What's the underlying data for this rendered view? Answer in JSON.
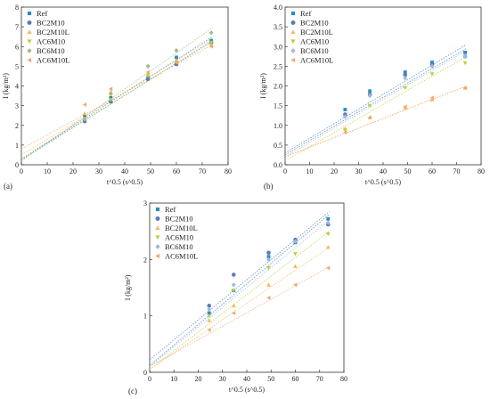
{
  "chart_data": [
    {
      "type": "scatter",
      "panel_label": "(a)",
      "xlabel": "t^0.5 (s^0.5)",
      "ylabel": "I (kg/m²)",
      "xlim": [
        0,
        80
      ],
      "ylim": [
        0,
        8
      ],
      "xticks": [
        "0",
        "10",
        "20",
        "30",
        "40",
        "50",
        "60",
        "70",
        "80"
      ],
      "yticks": [
        "0",
        "1",
        "2",
        "3",
        "4",
        "5",
        "6",
        "7",
        "8"
      ],
      "legend": "top-left",
      "x": [
        24.5,
        34.6,
        49.0,
        60.0,
        73.5
      ],
      "series": [
        {
          "name": "Ref",
          "marker": "square",
          "color": "#2b8cbe",
          "values": [
            2.45,
            3.4,
            4.4,
            5.45,
            6.3
          ],
          "fit": [
            0.3,
            6.5
          ]
        },
        {
          "name": "BC2M10",
          "marker": "circle",
          "color": "#5b7bb8",
          "values": [
            2.2,
            3.2,
            4.35,
            5.1,
            6.2
          ],
          "fit": [
            0.25,
            6.3
          ]
        },
        {
          "name": "BC2M10L",
          "marker": "triangle-up",
          "color": "#f5b95b",
          "values": [
            2.6,
            3.7,
            4.6,
            5.3,
            6.1
          ],
          "fit": [
            0.5,
            6.4
          ]
        },
        {
          "name": "AC6M10",
          "marker": "triangle-down",
          "color": "#b5d334",
          "values": [
            2.35,
            3.3,
            4.5,
            5.2,
            6.2
          ],
          "fit": [
            0.3,
            6.25
          ]
        },
        {
          "name": "BC6M10",
          "marker": "diamond",
          "color": "#a3b98a",
          "values": [
            2.3,
            3.6,
            5.0,
            5.8,
            6.7
          ],
          "fit": [
            0.2,
            6.95
          ]
        },
        {
          "name": "AC6M10L",
          "marker": "triangle-left",
          "color": "#f4a674",
          "values": [
            3.05,
            3.85,
            4.7,
            5.2,
            6.0
          ],
          "fit": [
            0.8,
            6.1
          ]
        }
      ]
    },
    {
      "type": "scatter",
      "panel_label": "(b)",
      "xlabel": "t^0.5 (s^0.5)",
      "ylabel": "I (kg/m²)",
      "xlim": [
        0,
        80
      ],
      "ylim": [
        0,
        4
      ],
      "xticks": [
        "0",
        "10",
        "20",
        "30",
        "40",
        "50",
        "60",
        "70",
        "80"
      ],
      "yticks": [
        "0.0",
        "0.5",
        "1.0",
        "1.5",
        "2.0",
        "2.5",
        "3.0",
        "3.5",
        "4.0"
      ],
      "legend": "top-left",
      "x": [
        24.5,
        34.6,
        49.0,
        60.0,
        73.5
      ],
      "series": [
        {
          "name": "Ref",
          "marker": "square",
          "color": "#2b8cbe",
          "values": [
            1.4,
            1.87,
            2.35,
            2.6,
            2.85
          ],
          "fit": [
            0.3,
            3.05
          ]
        },
        {
          "name": "BC2M10",
          "marker": "circle",
          "color": "#5b7bb8",
          "values": [
            1.28,
            1.78,
            2.28,
            2.55,
            2.75
          ],
          "fit": [
            0.25,
            2.95
          ]
        },
        {
          "name": "BC2M10L",
          "marker": "triangle-up",
          "color": "#f5b95b",
          "values": [
            0.92,
            1.2,
            1.45,
            1.65,
            1.95
          ],
          "fit": [
            0.2,
            2.0
          ]
        },
        {
          "name": "AC6M10",
          "marker": "triangle-down",
          "color": "#b5d334",
          "values": [
            0.88,
            1.5,
            1.95,
            2.3,
            2.58
          ],
          "fit": [
            0.1,
            2.75
          ]
        },
        {
          "name": "BC6M10",
          "marker": "diamond",
          "color": "#a3b5e0",
          "values": [
            1.22,
            1.75,
            2.2,
            2.5,
            2.75
          ],
          "fit": [
            0.2,
            2.9
          ]
        },
        {
          "name": "AC6M10L",
          "marker": "triangle-left",
          "color": "#f4a674",
          "values": [
            0.82,
            1.2,
            1.47,
            1.7,
            1.95
          ],
          "fit": [
            0.2,
            2.0
          ]
        }
      ]
    },
    {
      "type": "scatter",
      "panel_label": "(c)",
      "xlabel": "t^0.5 (s^0.5)",
      "ylabel": "I (kg/m²)",
      "xlim": [
        0,
        80
      ],
      "ylim": [
        0,
        3
      ],
      "xticks": [
        "0",
        "10",
        "20",
        "30",
        "40",
        "50",
        "60",
        "70",
        "80"
      ],
      "yticks": [
        "0",
        "1",
        "2",
        "3"
      ],
      "legend": "top-left",
      "x": [
        24.5,
        34.6,
        49.0,
        60.0,
        73.5
      ],
      "series": [
        {
          "name": "Ref",
          "marker": "square",
          "color": "#2b8cbe",
          "values": [
            1.05,
            1.45,
            2.05,
            2.3,
            2.72
          ],
          "fit": [
            0.12,
            2.8
          ]
        },
        {
          "name": "BC2M10",
          "marker": "circle",
          "color": "#5b7bb8",
          "values": [
            1.18,
            1.73,
            2.12,
            2.35,
            2.62
          ],
          "fit": [
            0.22,
            2.85
          ]
        },
        {
          "name": "BC2M10L",
          "marker": "triangle-up",
          "color": "#f5b95b",
          "values": [
            0.92,
            1.18,
            1.55,
            1.88,
            2.22
          ],
          "fit": [
            0.05,
            2.22
          ]
        },
        {
          "name": "AC6M10",
          "marker": "triangle-down",
          "color": "#b5d334",
          "values": [
            1.0,
            1.45,
            1.85,
            2.1,
            2.45
          ],
          "fit": [
            0.05,
            2.5
          ]
        },
        {
          "name": "BC6M10",
          "marker": "diamond",
          "color": "#a3b5e0",
          "values": [
            1.12,
            1.55,
            2.0,
            2.32,
            2.65
          ],
          "fit": [
            0.1,
            2.7
          ]
        },
        {
          "name": "AC6M10L",
          "marker": "triangle-left",
          "color": "#f4a674",
          "values": [
            0.75,
            1.05,
            1.32,
            1.55,
            1.85
          ],
          "fit": [
            0.1,
            1.87
          ]
        }
      ]
    }
  ]
}
